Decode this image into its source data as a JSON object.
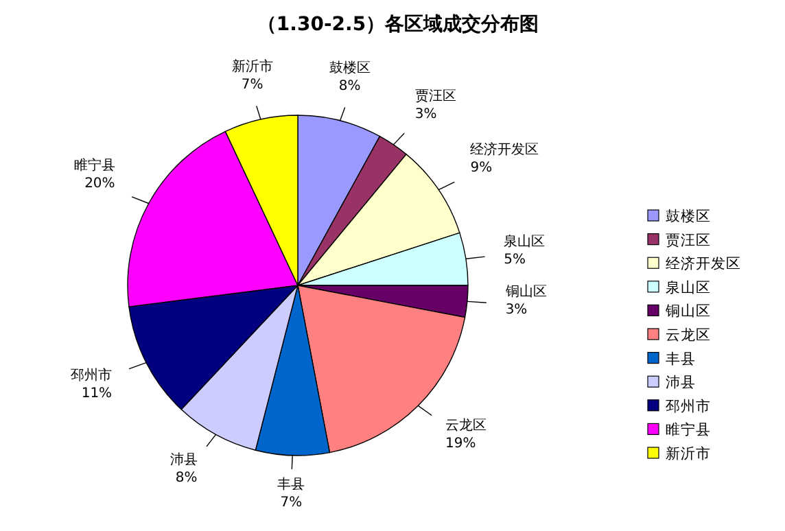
{
  "chart_data": {
    "type": "pie",
    "title": "（1.30-2.5）各区域成交分布图",
    "categories": [
      "鼓楼区",
      "贾汪区",
      "经济开发区",
      "泉山区",
      "铜山区",
      "云龙区",
      "丰县",
      "沛县",
      "邳州市",
      "睢宁县",
      "新沂市"
    ],
    "values": [
      8,
      3,
      9,
      5,
      3,
      19,
      7,
      8,
      11,
      20,
      7
    ],
    "value_labels": [
      "8%",
      "3%",
      "9%",
      "5%",
      "3%",
      "19%",
      "7%",
      "8%",
      "11%",
      "20%",
      "7%"
    ],
    "colors": [
      "#9999ff",
      "#993366",
      "#ffffcc",
      "#ccffff",
      "#660066",
      "#ff8080",
      "#0066cc",
      "#ccccff",
      "#000080",
      "#ff00ff",
      "#ffff00"
    ],
    "legend": "right"
  }
}
